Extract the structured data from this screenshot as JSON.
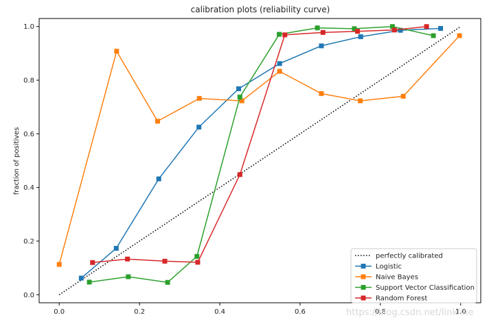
{
  "chart_data": {
    "type": "line",
    "title": "calibration plots (reliability curve)",
    "xlabel": "",
    "ylabel": "fraction of positives",
    "xlim": [
      -0.05,
      1.05
    ],
    "ylim": [
      -0.03,
      1.03
    ],
    "xticks": [
      "0.0",
      "0.2",
      "0.4",
      "0.6",
      "0.8",
      "1.0"
    ],
    "yticks": [
      "0.0",
      "0.2",
      "0.4",
      "0.6",
      "0.8",
      "1.0"
    ],
    "grid": false,
    "legend_position": "bottom-right",
    "series": [
      {
        "name": "perfectly calibrated",
        "color": "#000000",
        "style": "dotted",
        "marker": "none",
        "x": [
          0,
          1
        ],
        "y": [
          0,
          1
        ]
      },
      {
        "name": "Logistic",
        "color": "#1f77b4",
        "style": "solid",
        "marker": "square",
        "x": [
          0.055,
          0.142,
          0.248,
          0.348,
          0.447,
          0.549,
          0.653,
          0.751,
          0.85,
          0.95
        ],
        "y": [
          0.062,
          0.173,
          0.432,
          0.625,
          0.768,
          0.862,
          0.928,
          0.962,
          0.986,
          0.993
        ]
      },
      {
        "name": "Naive Bayes",
        "color": "#ff7f0e",
        "style": "solid",
        "marker": "square",
        "x": [
          0.0,
          0.143,
          0.245,
          0.349,
          0.455,
          0.549,
          0.653,
          0.75,
          0.857,
          0.997
        ],
        "y": [
          0.113,
          0.908,
          0.647,
          0.732,
          0.723,
          0.833,
          0.75,
          0.723,
          0.74,
          0.966
        ]
      },
      {
        "name": "Support Vector Classification",
        "color": "#2ca02c",
        "style": "solid",
        "marker": "square",
        "x": [
          0.075,
          0.172,
          0.27,
          0.343,
          0.45,
          0.548,
          0.643,
          0.735,
          0.83,
          0.932
        ],
        "y": [
          0.047,
          0.067,
          0.046,
          0.143,
          0.737,
          0.971,
          0.995,
          0.992,
          1.0,
          0.966
        ]
      },
      {
        "name": "Random Forest",
        "color": "#d62728",
        "style": "solid",
        "marker": "square",
        "x": [
          0.083,
          0.17,
          0.263,
          0.345,
          0.45,
          0.562,
          0.657,
          0.743,
          0.835,
          0.915
        ],
        "y": [
          0.12,
          0.133,
          0.125,
          0.121,
          0.448,
          0.969,
          0.978,
          0.982,
          0.987,
          1.0
        ]
      }
    ]
  },
  "watermark": "https://blog.csdn.net/linkline"
}
